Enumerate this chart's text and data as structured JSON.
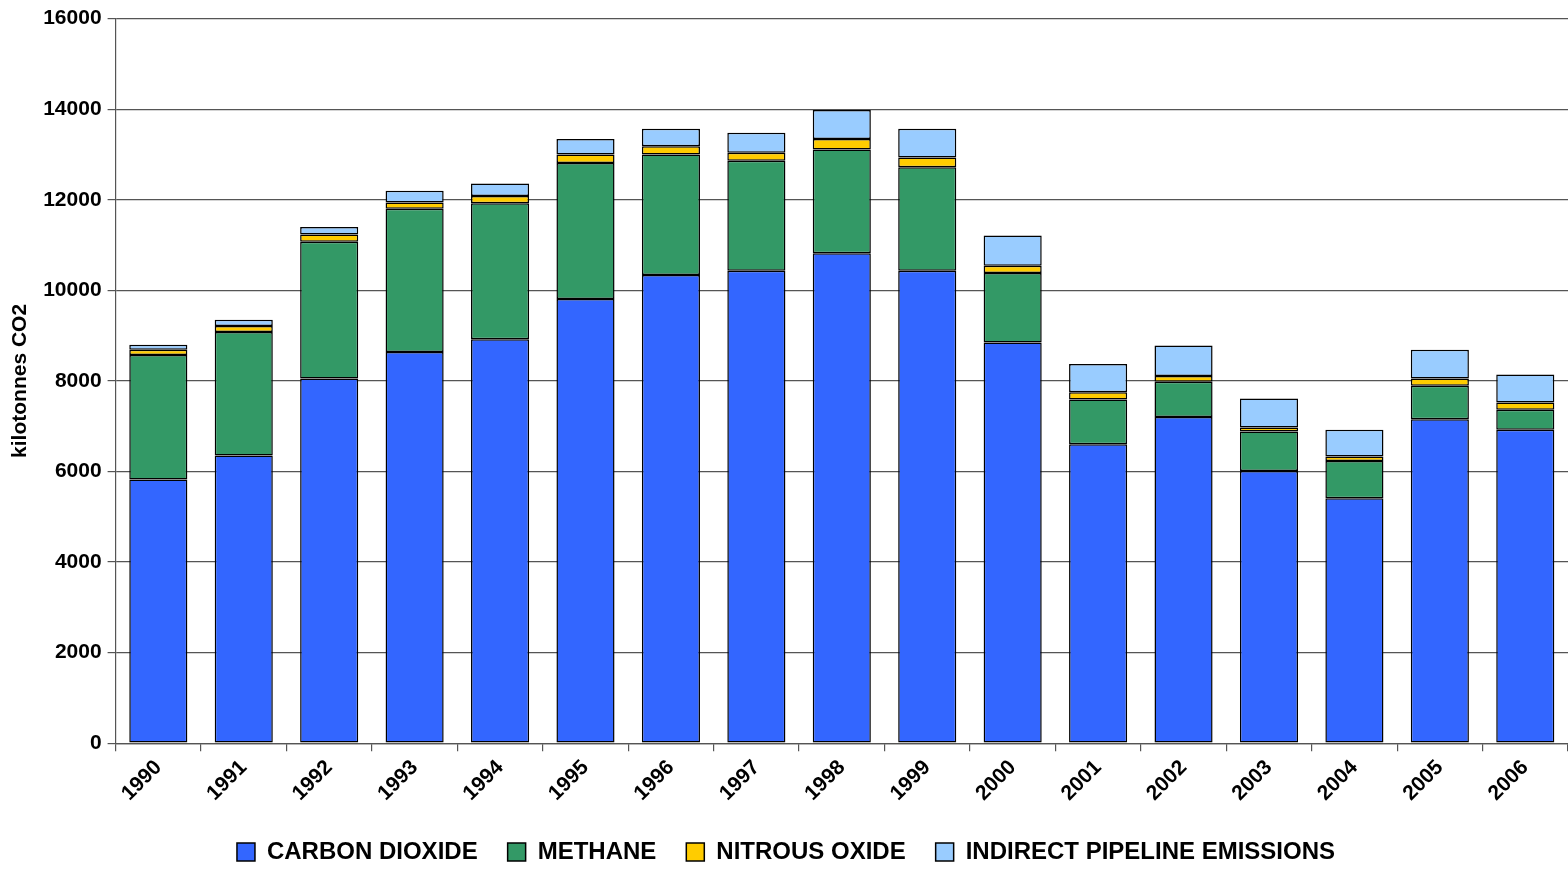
{
  "chart_data": {
    "type": "bar",
    "stacked": true,
    "ylabel": "kilotonnes CO2",
    "categories": [
      "1990",
      "1991",
      "1992",
      "1993",
      "1994",
      "1995",
      "1996",
      "1997",
      "1998",
      "1999",
      "2000",
      "2001",
      "2002",
      "2003",
      "2004",
      "2005",
      "2006"
    ],
    "series": [
      {
        "name": "CARBON DIOXIDE",
        "color": "#3366ff",
        "values": [
          5820,
          6350,
          8050,
          8640,
          8920,
          9810,
          10340,
          10430,
          10820,
          10430,
          8850,
          6600,
          7200,
          6010,
          5410,
          7150,
          6920
        ]
      },
      {
        "name": "METHANE",
        "color": "#339966",
        "values": [
          2750,
          2730,
          3020,
          3160,
          3000,
          3000,
          2660,
          2430,
          2290,
          2290,
          1530,
          990,
          780,
          870,
          820,
          740,
          440
        ]
      },
      {
        "name": "NITROUS OXIDE",
        "color": "#ffcc00",
        "values": [
          120,
          130,
          160,
          140,
          160,
          190,
          180,
          180,
          230,
          210,
          160,
          160,
          130,
          90,
          100,
          160,
          160
        ]
      },
      {
        "name": "INDIRECT PIPELINE EMISSIONS",
        "color": "#99ccff",
        "values": [
          110,
          140,
          170,
          260,
          280,
          340,
          390,
          440,
          640,
          640,
          670,
          620,
          670,
          640,
          590,
          640,
          620
        ]
      }
    ],
    "ylim": [
      0,
      16000
    ],
    "yticks": [
      0,
      2000,
      4000,
      6000,
      8000,
      10000,
      12000,
      14000,
      16000
    ],
    "grid": "y",
    "legend": "bottom"
  }
}
